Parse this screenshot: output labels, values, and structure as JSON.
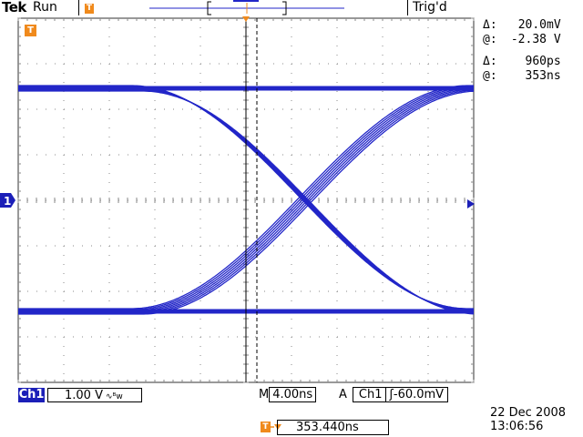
{
  "header": {
    "brand": "Tek",
    "acquisition_status": "Run",
    "trigger_status": "Trig'd"
  },
  "cursor_readouts": {
    "voltage_delta_symbol": "Δ:",
    "voltage_delta": "20.0mV",
    "voltage_at_symbol": "@:",
    "voltage_at": "-2.38 V",
    "time_delta_symbol": "Δ:",
    "time_delta": "960ps",
    "time_at_symbol": "@:",
    "time_at": "353ns"
  },
  "channel": {
    "badge": "Ch1",
    "marker": "1",
    "scale": "1.00 V",
    "bandwidth_icon": "∿ᴮw",
    "color": "#1b1fb8"
  },
  "horizontal": {
    "prefix": "M",
    "scale": "4.00ns"
  },
  "trigger": {
    "mode": "A",
    "source": "Ch1",
    "slope_icon": "rising-edge-icon",
    "slope_glyph": "ʃ",
    "level": "-60.0mV",
    "marker_color": "#f08a1c"
  },
  "horizontal_position": {
    "value": "353.440ns"
  },
  "datetime": {
    "date": "22 Dec  2008",
    "time": "13:06:56"
  },
  "markers": {
    "trigger_point_glyph": "T"
  },
  "colors": {
    "trace": "#2226c8",
    "graticule": "#8a8a8a",
    "background": "#ffffff"
  }
}
